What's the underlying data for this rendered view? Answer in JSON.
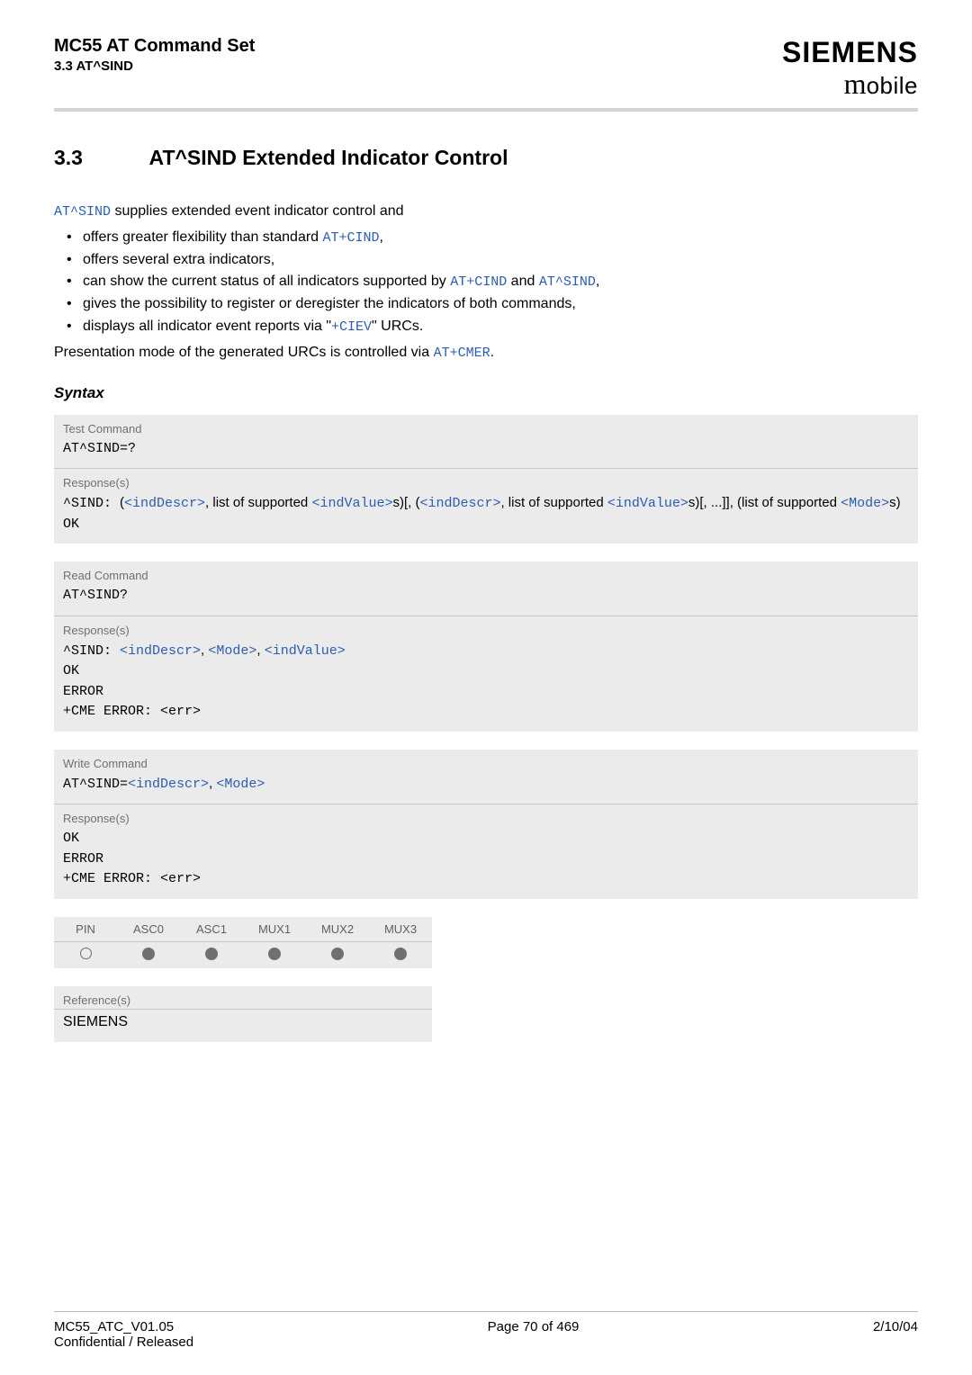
{
  "header": {
    "title": "MC55 AT Command Set",
    "subtitle": "3.3 AT^SIND",
    "brand1": "SIEMENS",
    "brand2_m": "m",
    "brand2_rest": "obile"
  },
  "section": {
    "num": "3.3",
    "title": "AT^SIND   Extended Indicator Control"
  },
  "intro": {
    "pre": " supplies extended event indicator control and",
    "cmd0": "AT^SIND",
    "bullets": [
      {
        "pre": "offers greater flexibility than standard ",
        "code": "AT+CIND",
        "post": ","
      },
      {
        "pre": "offers several extra indicators,",
        "code": "",
        "post": ""
      },
      {
        "pre": "can show the current status of all indicators supported by ",
        "code": "AT+CIND",
        "mid": " and ",
        "code2": "AT^SIND",
        "post": ","
      },
      {
        "pre": "gives the possibility to register or deregister the indicators of both commands,",
        "code": "",
        "post": ""
      },
      {
        "pre": "displays all indicator event reports via \"",
        "code": "+CIEV",
        "post": "\" URCs."
      }
    ],
    "tail_pre": "Presentation mode of the generated URCs is controlled via ",
    "tail_code": "AT+CMER",
    "tail_post": "."
  },
  "syntax_label": "Syntax",
  "blocks": {
    "test": {
      "label": "Test Command",
      "cmd": "AT^SIND=?",
      "resp_label": "Response(s)",
      "resp_prefix": "^SIND: ",
      "p_open": "(",
      "p_ind": "<indDescr>",
      "p_txt1": ", list of supported ",
      "p_indval": "<indValue>",
      "p_txt2": "s)[, (",
      "p_txt3": ", list of supported ",
      "p_txt4": "s)[, ...]], (list of supported ",
      "p_mode": "<Mode>",
      "p_txt5": "s)",
      "ok": "OK"
    },
    "read": {
      "label": "Read Command",
      "cmd": "AT^SIND?",
      "resp_label": "Response(s)",
      "line1_pre": "^SIND: ",
      "p_ind": "<indDescr>",
      "comma": ", ",
      "p_mode": "<Mode>",
      "p_indval": "<indValue>",
      "ok": "OK",
      "error": "ERROR",
      "cme": "+CME ERROR: <err>"
    },
    "write": {
      "label": "Write Command",
      "cmd_pre": "AT^SIND=",
      "p_ind": "<indDescr>",
      "comma": ", ",
      "p_mode": "<Mode>",
      "resp_label": "Response(s)",
      "ok": "OK",
      "error": "ERROR",
      "cme": "+CME ERROR: <err>"
    }
  },
  "interfaces": {
    "cols": [
      "PIN",
      "ASC0",
      "ASC1",
      "MUX1",
      "MUX2",
      "MUX3"
    ],
    "states": [
      "empty",
      "filled",
      "filled",
      "filled",
      "filled",
      "filled"
    ]
  },
  "reference": {
    "label": "Reference(s)",
    "value": "SIEMENS"
  },
  "footer": {
    "left1": "MC55_ATC_V01.05",
    "left2": "Confidential / Released",
    "center": "Page 70 of 469",
    "right": "2/10/04"
  }
}
